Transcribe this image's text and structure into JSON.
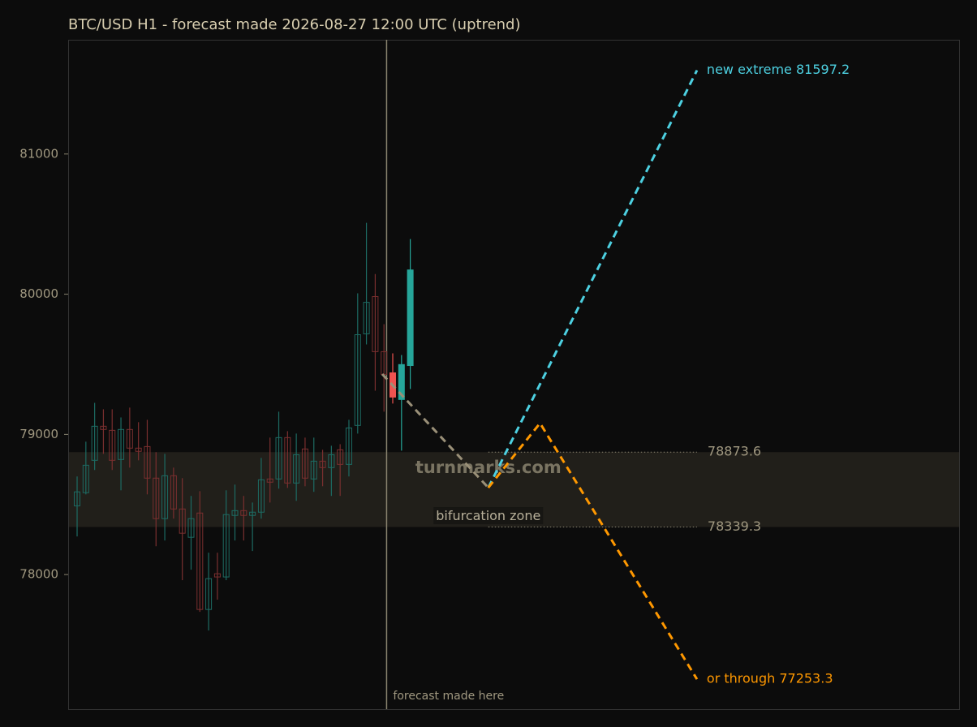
{
  "chart_data": {
    "type": "candlestick",
    "title": "BTC/USD H1 - forecast made 2026-08-27 12:00 UTC (uptrend)",
    "xlim": [
      -1.02,
      100.6
    ],
    "ylim": [
      77040,
      81815
    ],
    "yticks": [
      78000,
      79000,
      80000,
      81000
    ],
    "candles": {
      "up_color": "#1d6b63",
      "down_color": "#7a2f2f",
      "open": [
        78490,
        78584,
        78815,
        79058,
        79029,
        78821,
        79035,
        78902,
        78913,
        78688,
        78399,
        78705,
        78468,
        78266,
        78439,
        77751,
        78006,
        77983,
        78422,
        78456,
        78422,
        78445,
        78682,
        78682,
        78977,
        78653,
        78896,
        78682,
        78809,
        78763,
        78890,
        78786,
        79064,
        79717,
        79983,
        79590
      ],
      "high": [
        78700,
        78948,
        79225,
        79179,
        79179,
        79121,
        79191,
        79087,
        79104,
        78873,
        78861,
        78763,
        78688,
        78561,
        78595,
        78156,
        78156,
        78601,
        78642,
        78561,
        78514,
        78832,
        78977,
        79162,
        79023,
        79006,
        78977,
        78977,
        78890,
        78919,
        78930,
        79104,
        80006,
        80509,
        80144,
        79786
      ],
      "low": [
        78272,
        78572,
        78746,
        78861,
        78746,
        78601,
        78763,
        78815,
        78572,
        78202,
        78243,
        78399,
        77960,
        78035,
        77734,
        77601,
        77821,
        77960,
        78243,
        78243,
        78168,
        78399,
        78514,
        78613,
        78618,
        78526,
        78630,
        78590,
        78630,
        78561,
        78561,
        78700,
        79006,
        79642,
        79312,
        79162
      ],
      "close": [
        78590,
        78780,
        79058,
        79035,
        78815,
        79035,
        78902,
        78879,
        78688,
        78399,
        78705,
        78468,
        78295,
        78399,
        77751,
        77971,
        77983,
        78428,
        78456,
        78422,
        78445,
        78676,
        78659,
        78977,
        78653,
        78855,
        78688,
        78809,
        78763,
        78855,
        78786,
        79046,
        79711,
        79942,
        79590,
        79428
      ]
    },
    "post_candles": {
      "up_color": "#26a69a",
      "down_color": "#ef5350",
      "open": [
        79439,
        79249,
        79491
      ],
      "high": [
        79578,
        79566,
        80393
      ],
      "low": [
        79220,
        78884,
        79324
      ],
      "close": [
        79266,
        79498,
        80173
      ]
    },
    "forecast_x": 35.3,
    "forecast_label": "forecast made here",
    "zone": {
      "label": "bifurcation zone",
      "upper": 78873.6,
      "lower": 78339.3,
      "color": "#211f1a",
      "line_color": "#8a8470"
    },
    "watermark": "turnmarks.com",
    "paths": [
      {
        "color": "#9a9078",
        "x": [
          34.8,
          46.9
        ],
        "y": [
          79430,
          78620
        ]
      },
      {
        "color": "#4dd0e1",
        "label": "new extreme 81597.2",
        "x": [
          46.9,
          70.7
        ],
        "y": [
          78620,
          81597.2
        ]
      },
      {
        "color": "#ff9800",
        "label": "or through 77253.3",
        "x": [
          46.9,
          52.8,
          70.7
        ],
        "y": [
          78620,
          79080,
          77253.3
        ]
      }
    ]
  }
}
